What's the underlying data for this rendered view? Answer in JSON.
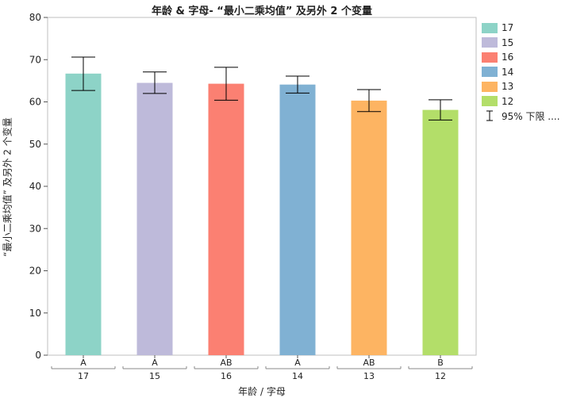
{
  "chart_data": {
    "type": "bar",
    "title": "年龄 & 字母- “最小二乘均值” 及另外 2 个变量",
    "xlabel": "年龄 / 字母",
    "ylabel": "“最小二乘均值” 及另外 2 个变量",
    "ylim": [
      0,
      80
    ],
    "yticks": [
      0,
      10,
      20,
      30,
      40,
      50,
      60,
      70,
      80
    ],
    "categories": [
      "17",
      "15",
      "16",
      "14",
      "13",
      "12"
    ],
    "letters": [
      "A",
      "A",
      "AB",
      "A",
      "AB",
      "B"
    ],
    "values": [
      66.7,
      64.5,
      64.3,
      64.1,
      60.3,
      58.1
    ],
    "lower": [
      62.7,
      62.0,
      60.4,
      62.1,
      57.7,
      55.7
    ],
    "upper": [
      70.6,
      67.1,
      68.2,
      66.1,
      62.9,
      60.5
    ],
    "colors": [
      "#8DD3C7",
      "#BEBADA",
      "#FB8072",
      "#80B1D3",
      "#FDB462",
      "#B3DE69"
    ],
    "grid": false,
    "legend_position": "right",
    "legend": [
      "17",
      "15",
      "16",
      "14",
      "13",
      "12"
    ],
    "legend_errorbar_label": "95% 下限 ...."
  }
}
